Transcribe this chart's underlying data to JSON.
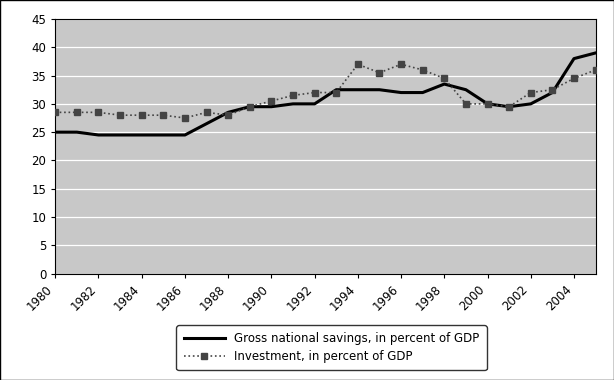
{
  "years": [
    1980,
    1981,
    1982,
    1983,
    1984,
    1985,
    1986,
    1987,
    1988,
    1989,
    1990,
    1991,
    1992,
    1993,
    1994,
    1995,
    1996,
    1997,
    1998,
    1999,
    2000,
    2001,
    2002,
    2003,
    2004,
    2005
  ],
  "gn_savings": [
    25.0,
    25.0,
    24.5,
    24.5,
    24.5,
    24.5,
    24.5,
    26.5,
    28.5,
    29.5,
    29.5,
    30.0,
    30.0,
    32.5,
    32.5,
    32.5,
    32.0,
    32.0,
    33.5,
    32.5,
    30.0,
    29.5,
    30.0,
    32.0,
    38.0,
    39.0
  ],
  "investment": [
    28.5,
    28.5,
    28.5,
    28.0,
    28.0,
    28.0,
    27.5,
    28.5,
    28.0,
    29.5,
    30.5,
    31.5,
    32.0,
    32.0,
    37.0,
    35.5,
    37.0,
    36.0,
    34.5,
    30.0,
    30.0,
    29.5,
    32.0,
    32.5,
    34.5,
    36.0
  ],
  "ylim": [
    0,
    45
  ],
  "yticks": [
    0,
    5,
    10,
    15,
    20,
    25,
    30,
    35,
    40,
    45
  ],
  "xlim_start": 1980,
  "xlim_end": 2005,
  "line1_color": "#000000",
  "line2_color": "#444444",
  "bg_color": "#c8c8c8",
  "fig_bg_color": "#ffffff",
  "legend_label1": "Gross national savings, in percent of GDP",
  "legend_label2": "Investment, in percent of GDP",
  "tick_fontsize": 8.5,
  "legend_fontsize": 8.5
}
